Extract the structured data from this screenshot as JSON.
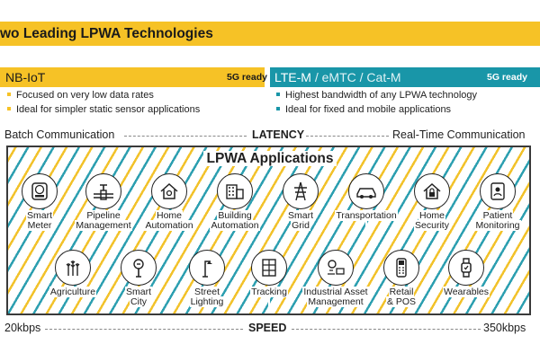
{
  "title": "wo Leading LPWA Technologies",
  "nbiot": {
    "name": "NB-IoT",
    "ready": "5G ready",
    "bullets": [
      "Focused on very low data rates",
      "Ideal for simpler static sensor applications"
    ]
  },
  "ltem": {
    "name": "LTE-M",
    "alt": " / eMTC / Cat-M",
    "ready": "5G ready",
    "bullets": [
      "Highest bandwidth of any LPWA technology",
      "Ideal for fixed and mobile applications"
    ]
  },
  "latency": {
    "left": "Batch Communication",
    "label": "LATENCY",
    "right": "Real-Time Communication"
  },
  "speed": {
    "left": "20kbps",
    "label": "SPEED",
    "right": "350kbps"
  },
  "apps": {
    "title": "LPWA Applications",
    "row1": [
      {
        "l1": "Smart",
        "l2": "Meter",
        "icon": "meter-icon"
      },
      {
        "l1": "Pipeline",
        "l2": "Management",
        "icon": "pipeline-icon"
      },
      {
        "l1": "Home",
        "l2": "Automation",
        "icon": "home-automation-icon"
      },
      {
        "l1": "Building",
        "l2": "Automation",
        "icon": "building-icon"
      },
      {
        "l1": "Smart",
        "l2": "Grid",
        "icon": "power-tower-icon"
      },
      {
        "l1": "Transportation",
        "l2": "",
        "icon": "car-icon"
      },
      {
        "l1": "Home",
        "l2": "Security",
        "icon": "home-security-icon"
      },
      {
        "l1": "Patient",
        "l2": "Monitoring",
        "icon": "patient-icon"
      }
    ],
    "row2": [
      {
        "l1": "Agriculture",
        "l2": "",
        "icon": "wheat-icon"
      },
      {
        "l1": "Smart",
        "l2": "City",
        "icon": "parking-meter-icon"
      },
      {
        "l1": "Street",
        "l2": "Lighting",
        "icon": "street-lamp-icon"
      },
      {
        "l1": "Tracking",
        "l2": "",
        "icon": "tracking-icon"
      },
      {
        "l1": "Industrial Asset",
        "l2": "Management",
        "icon": "industrial-icon"
      },
      {
        "l1": "Retail",
        "l2": "& POS",
        "icon": "pos-terminal-icon"
      },
      {
        "l1": "Wearables",
        "l2": "",
        "icon": "watch-icon"
      }
    ]
  }
}
